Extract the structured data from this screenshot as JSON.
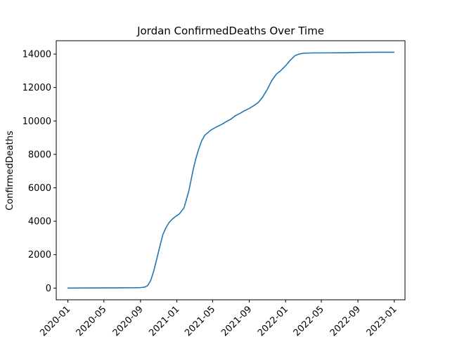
{
  "chart_data": {
    "type": "line",
    "title": "Jordan  ConfirmedDeaths Over Time",
    "xlabel": "",
    "ylabel": "ConfirmedDeaths",
    "xlim": [
      "2019-11-23",
      "2023-02-06"
    ],
    "ylim": [
      -700,
      14800
    ],
    "grid": false,
    "legend": "none",
    "x_ticks": [
      "2020-01",
      "2020-05",
      "2020-09",
      "2021-01",
      "2021-05",
      "2021-09",
      "2022-01",
      "2022-05",
      "2022-09",
      "2023-01"
    ],
    "y_ticks": [
      0,
      2000,
      4000,
      6000,
      8000,
      10000,
      12000,
      14000
    ],
    "y_tick_labels": [
      "0",
      "2000",
      "4000",
      "6000",
      "8000",
      "10000",
      "12000",
      "14000"
    ],
    "series": [
      {
        "color": "#1f77b4",
        "x": [
          "2020-01-01",
          "2020-03-01",
          "2020-05-01",
          "2020-07-01",
          "2020-08-15",
          "2020-09-01",
          "2020-09-15",
          "2020-09-25",
          "2020-10-05",
          "2020-10-15",
          "2020-10-25",
          "2020-11-05",
          "2020-11-15",
          "2020-11-25",
          "2020-12-05",
          "2020-12-15",
          "2020-12-25",
          "2021-01-10",
          "2021-01-25",
          "2021-02-10",
          "2021-02-25",
          "2021-03-05",
          "2021-03-15",
          "2021-03-25",
          "2021-04-05",
          "2021-04-15",
          "2021-04-25",
          "2021-05-05",
          "2021-05-15",
          "2021-06-01",
          "2021-06-15",
          "2021-07-01",
          "2021-07-15",
          "2021-08-01",
          "2021-08-15",
          "2021-09-01",
          "2021-09-15",
          "2021-10-01",
          "2021-10-15",
          "2021-11-01",
          "2021-11-15",
          "2021-12-01",
          "2021-12-15",
          "2022-01-01",
          "2022-01-15",
          "2022-02-01",
          "2022-02-15",
          "2022-03-01",
          "2022-03-15",
          "2022-04-01",
          "2022-04-15",
          "2022-05-01",
          "2022-06-01",
          "2022-07-15",
          "2022-09-01",
          "2022-11-01",
          "2022-12-31"
        ],
        "values": [
          0,
          5,
          10,
          15,
          20,
          30,
          60,
          150,
          450,
          1000,
          1700,
          2500,
          3200,
          3600,
          3900,
          4100,
          4250,
          4450,
          4800,
          5800,
          7100,
          7700,
          8300,
          8800,
          9150,
          9300,
          9450,
          9550,
          9650,
          9800,
          9950,
          10100,
          10300,
          10450,
          10600,
          10750,
          10900,
          11100,
          11400,
          11900,
          12400,
          12800,
          13000,
          13300,
          13600,
          13900,
          14000,
          14050,
          14060,
          14070,
          14070,
          14070,
          14075,
          14080,
          14100,
          14110,
          14110
        ]
      }
    ]
  }
}
